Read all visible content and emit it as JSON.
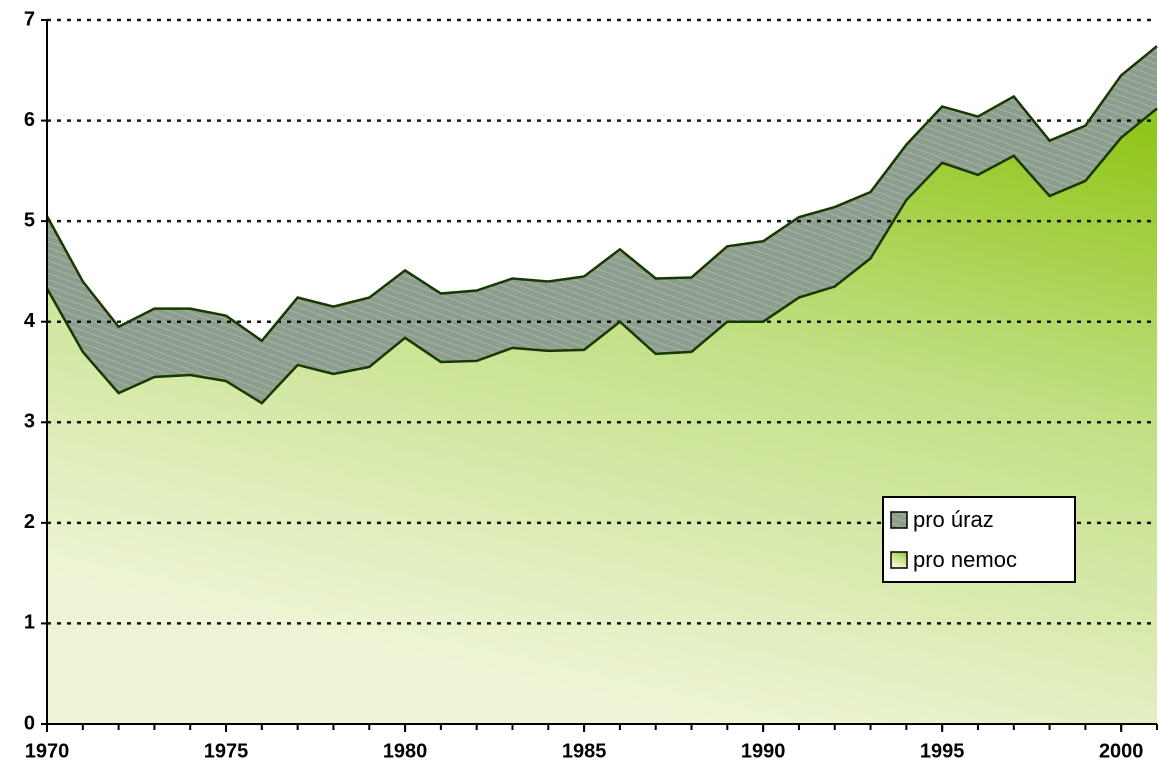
{
  "chart_data": {
    "type": "area",
    "stacked": true,
    "x": [
      1970,
      1971,
      1972,
      1973,
      1974,
      1975,
      1976,
      1977,
      1978,
      1979,
      1980,
      1981,
      1982,
      1983,
      1984,
      1985,
      1986,
      1987,
      1988,
      1989,
      1990,
      1991,
      1992,
      1993,
      1994,
      1995,
      1996,
      1997,
      1998,
      1999,
      2000,
      2001
    ],
    "series": [
      {
        "name": "pro nemoc",
        "color": "#a5cf3a",
        "values": [
          4.33,
          3.7,
          3.29,
          3.45,
          3.47,
          3.41,
          3.19,
          3.57,
          3.48,
          3.55,
          3.84,
          3.6,
          3.61,
          3.74,
          3.71,
          3.72,
          4.0,
          3.68,
          3.7,
          4.0,
          4.0,
          4.24,
          4.35,
          4.63,
          5.21,
          5.58,
          5.46,
          5.65,
          5.25,
          5.4,
          5.83,
          6.12
        ]
      },
      {
        "name": "pro úraz",
        "color": "#8c9c8c",
        "values": [
          0.72,
          0.7,
          0.66,
          0.68,
          0.66,
          0.65,
          0.62,
          0.67,
          0.67,
          0.69,
          0.67,
          0.68,
          0.7,
          0.69,
          0.69,
          0.73,
          0.72,
          0.75,
          0.74,
          0.75,
          0.8,
          0.8,
          0.79,
          0.66,
          0.55,
          0.56,
          0.58,
          0.59,
          0.55,
          0.55,
          0.62,
          0.62
        ]
      }
    ],
    "xlim": [
      1970,
      2001
    ],
    "xticks": [
      1970,
      1975,
      1980,
      1985,
      1990,
      1995,
      2000
    ],
    "ylim": [
      0,
      7
    ],
    "yticks": [
      0,
      1,
      2,
      3,
      4,
      5,
      6,
      7
    ],
    "grid": true,
    "legend_position": "right"
  }
}
